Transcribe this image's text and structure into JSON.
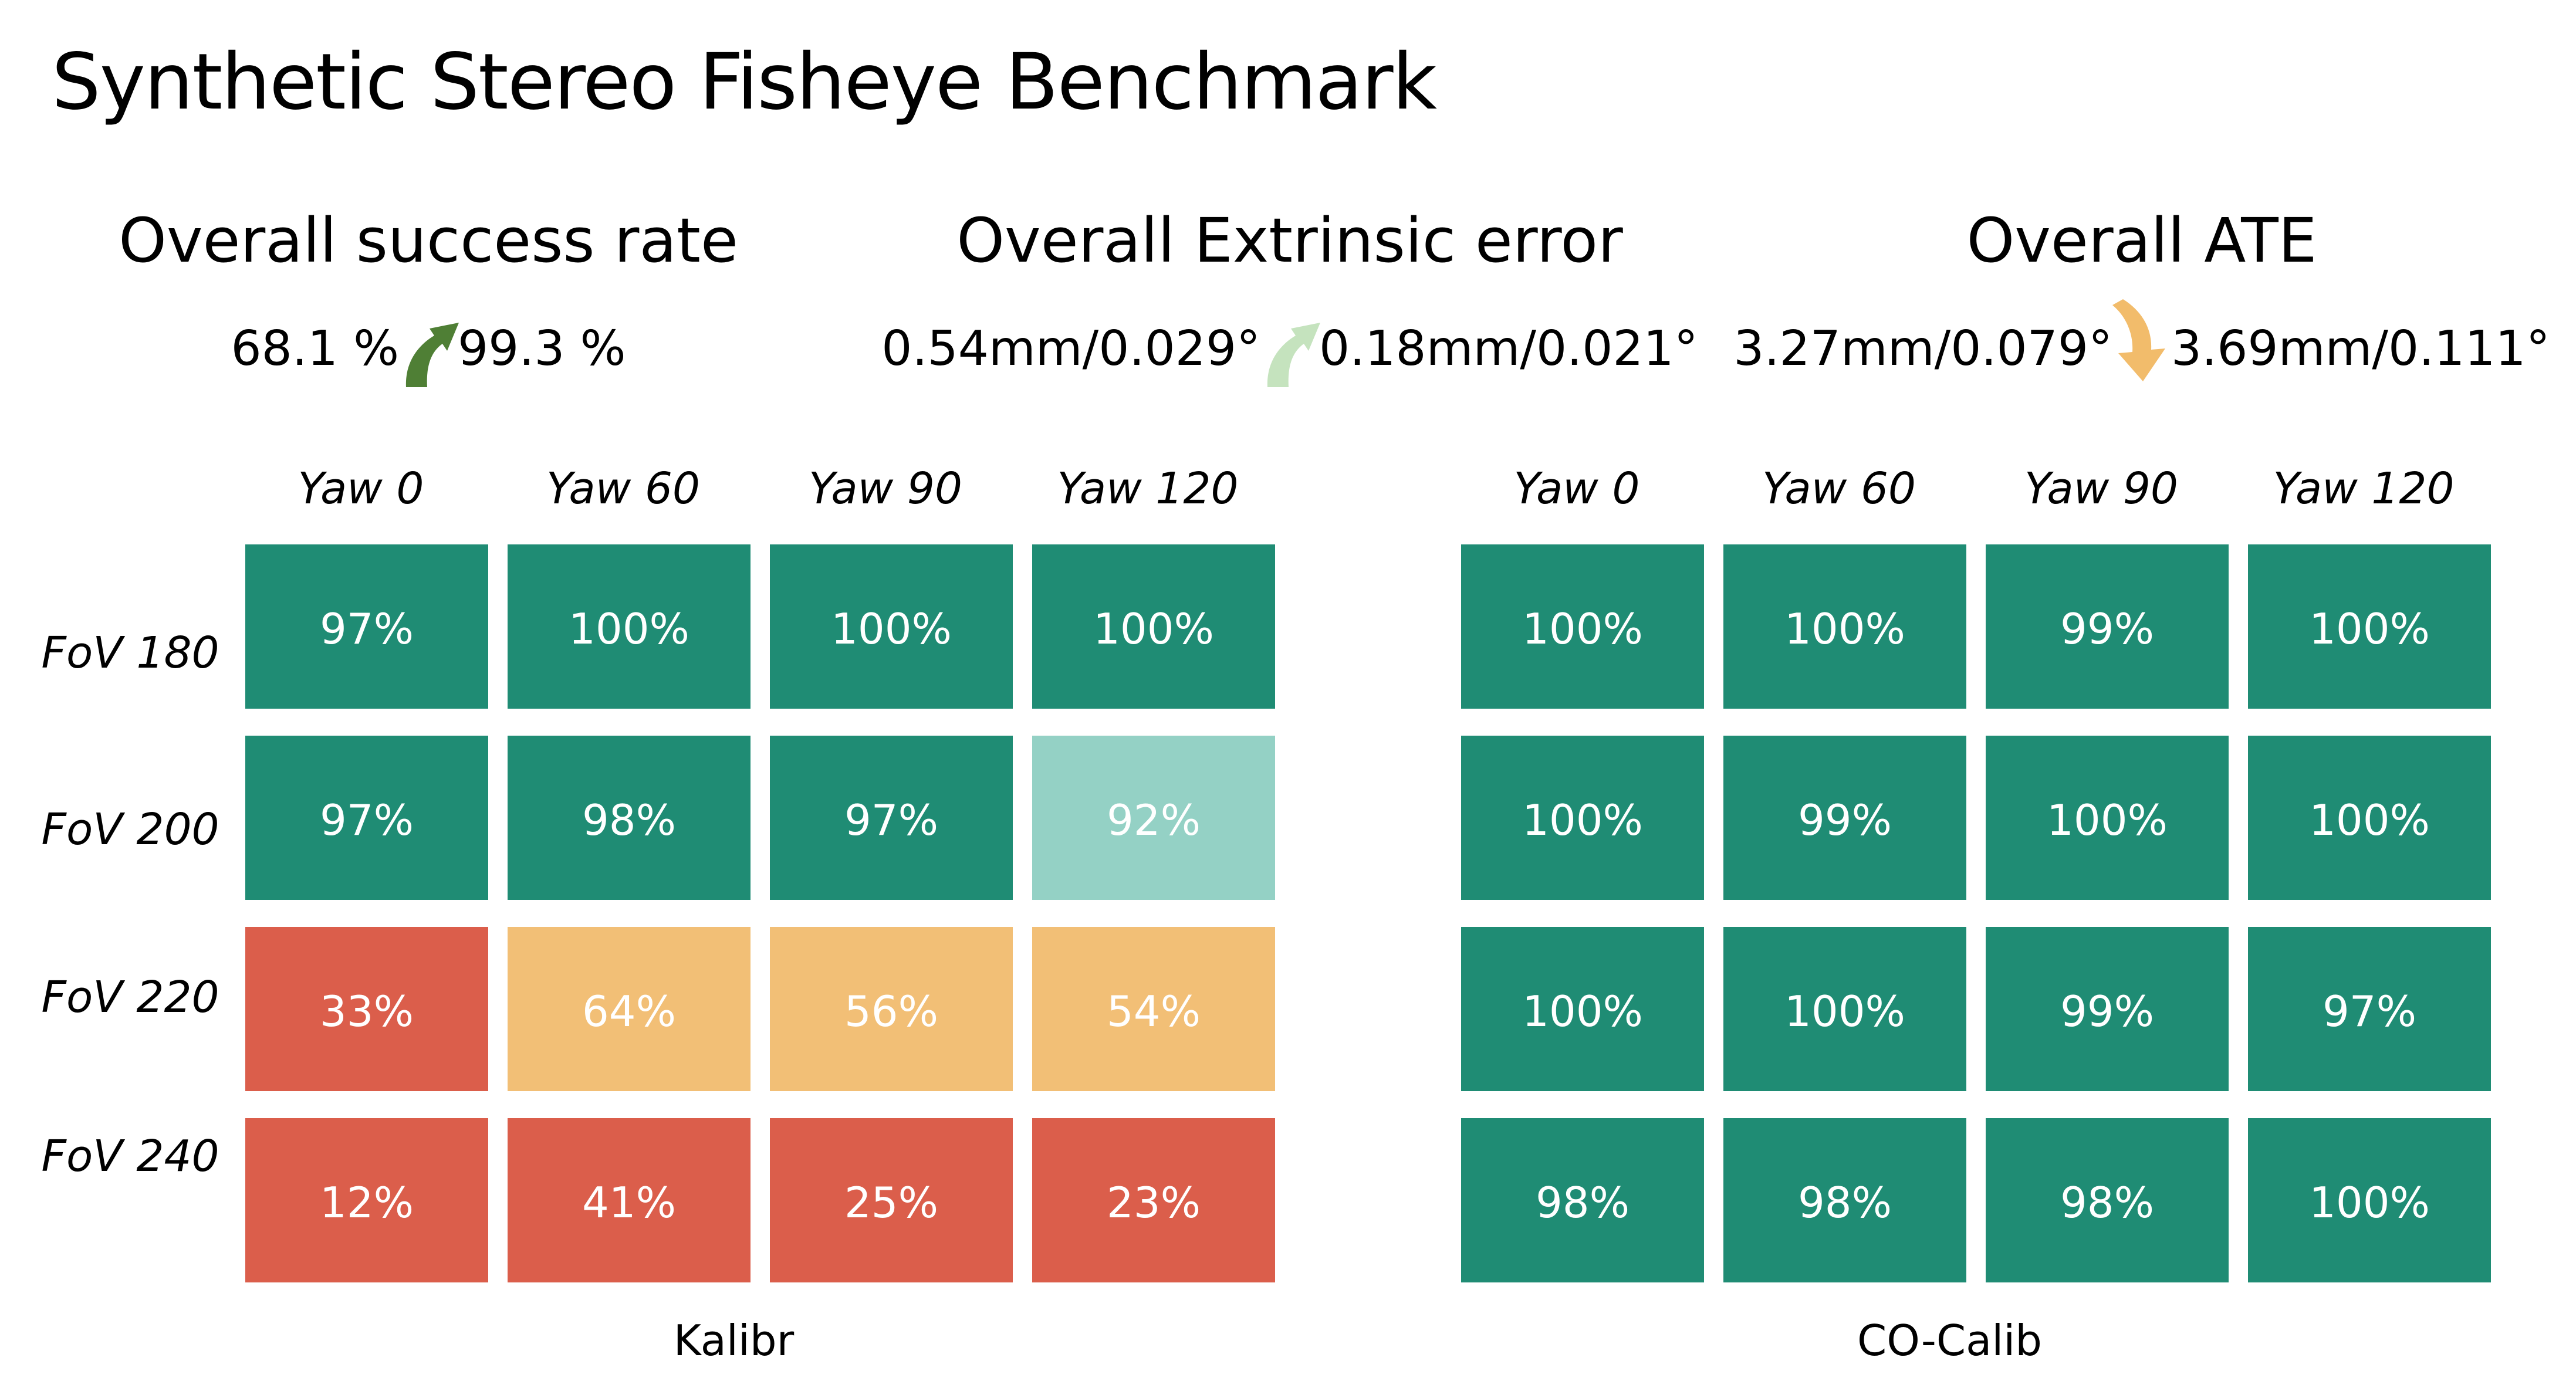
{
  "title": "Synthetic Stereo Fisheye Benchmark",
  "metrics": [
    {
      "title": "Overall success rate",
      "from": "68.1 %",
      "to": "99.3 %",
      "direction": "up",
      "arrow_color": "#4F7F35",
      "arrow_icon": "curved-up-arrow"
    },
    {
      "title": "Overall Extrinsic error",
      "from": "0.54mm/0.029°",
      "to": "0.18mm/0.021°",
      "direction": "up",
      "arrow_color": "#C5E3BE",
      "arrow_icon": "curved-up-arrow"
    },
    {
      "title": "Overall ATE",
      "from": "3.27mm/0.079°",
      "to": "3.69mm/0.111°",
      "direction": "down",
      "arrow_color": "#F2BC6B",
      "arrow_icon": "curved-down-arrow"
    }
  ],
  "colors": {
    "dark_green": "#1F8C74",
    "light_teal": "#94D1C5",
    "orange": "#F2BF76",
    "red": "#DB5E4B",
    "text_on_cell": "#FFFFFF"
  },
  "chart_data": [
    {
      "type": "heatmap",
      "title": "Kalibr",
      "columns": [
        "Yaw 0",
        "Yaw 60",
        "Yaw 90",
        "Yaw 120"
      ],
      "rows": [
        "FoV 180",
        "FoV 200",
        "FoV 220",
        "FoV 240"
      ],
      "values": [
        [
          97,
          100,
          100,
          100
        ],
        [
          97,
          98,
          97,
          92
        ],
        [
          33,
          64,
          56,
          54
        ],
        [
          12,
          41,
          25,
          23
        ]
      ],
      "labels": [
        [
          "97%",
          "100%",
          "100%",
          "100%"
        ],
        [
          "97%",
          "98%",
          "97%",
          "92%"
        ],
        [
          "33%",
          "64%",
          "56%",
          "54%"
        ],
        [
          "12%",
          "41%",
          "25%",
          "23%"
        ]
      ],
      "cell_colors": [
        [
          "#1F8C74",
          "#1F8C74",
          "#1F8C74",
          "#1F8C74"
        ],
        [
          "#1F8C74",
          "#1F8C74",
          "#1F8C74",
          "#94D1C5"
        ],
        [
          "#DB5E4B",
          "#F2BF76",
          "#F2BF76",
          "#F2BF76"
        ],
        [
          "#DB5E4B",
          "#DB5E4B",
          "#DB5E4B",
          "#DB5E4B"
        ]
      ],
      "unit": "%"
    },
    {
      "type": "heatmap",
      "title": "CO-Calib",
      "columns": [
        "Yaw 0",
        "Yaw 60",
        "Yaw 90",
        "Yaw 120"
      ],
      "rows": [
        "FoV 180",
        "FoV 200",
        "FoV 220",
        "FoV 240"
      ],
      "values": [
        [
          100,
          100,
          99,
          100
        ],
        [
          100,
          99,
          100,
          100
        ],
        [
          100,
          100,
          99,
          97
        ],
        [
          98,
          98,
          98,
          100
        ]
      ],
      "labels": [
        [
          "100%",
          "100%",
          "99%",
          "100%"
        ],
        [
          "100%",
          "99%",
          "100%",
          "100%"
        ],
        [
          "100%",
          "100%",
          "99%",
          "97%"
        ],
        [
          "98%",
          "98%",
          "98%",
          "100%"
        ]
      ],
      "cell_colors": [
        [
          "#1F8C74",
          "#1F8C74",
          "#1F8C74",
          "#1F8C74"
        ],
        [
          "#1F8C74",
          "#1F8C74",
          "#1F8C74",
          "#1F8C74"
        ],
        [
          "#1F8C74",
          "#1F8C74",
          "#1F8C74",
          "#1F8C74"
        ],
        [
          "#1F8C74",
          "#1F8C74",
          "#1F8C74",
          "#1F8C74"
        ]
      ],
      "unit": "%"
    }
  ]
}
